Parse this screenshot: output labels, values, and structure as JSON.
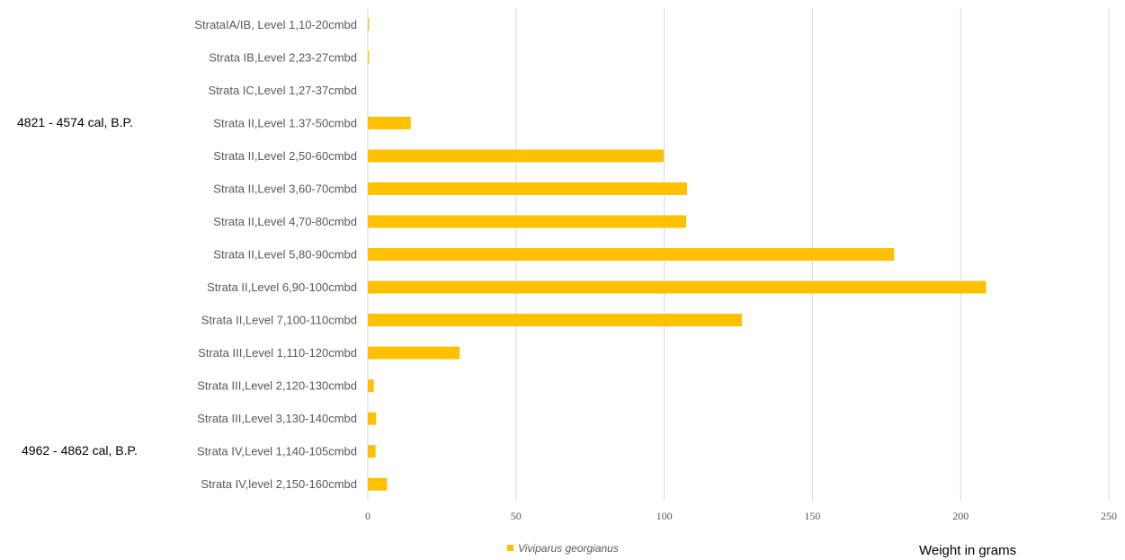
{
  "chart_data": {
    "type": "bar",
    "orientation": "horizontal",
    "title": "",
    "xlabel": "Weight in grams",
    "ylabel": "",
    "xlim": [
      0,
      250
    ],
    "x_ticks": [
      0,
      50,
      100,
      150,
      200,
      250
    ],
    "grid": true,
    "legend_position": "bottom",
    "bar_color": "#FFC000",
    "categories": [
      "StrataIA/IB, Level 1,10-20cmbd",
      "Strata IB,Level 2,23-27cmbd",
      "Strata IC,Level 1,27-37cmbd",
      "Strata II,Level 1.37-50cmbd",
      "Strata II,Level 2,50-60cmbd",
      "Strata II,Level 3,60-70cmbd",
      "Strata II,Level 4,70-80cmbd",
      "Strata II,Level 5,80-90cmbd",
      "Strata II,Level 6,90-100cmbd",
      "Strata II,Level 7,100-110cmbd",
      "Strata III,Level 1,110-120cmbd",
      "Strata III,Level 2,120-130cmbd",
      "Strata III,Level 3,130-140cmbd",
      "Strata IV,Level 1,140-105cmbd",
      "Strata IV,level 2,150-160cmbd"
    ],
    "series": [
      {
        "name": "Viviparus georgianus",
        "values": [
          0.4,
          0.4,
          0,
          14.5,
          99.8,
          107.7,
          107.4,
          177.6,
          208.6,
          126.2,
          31,
          2,
          2.8,
          2.6,
          6.5
        ]
      }
    ],
    "annotations": [
      {
        "text": "4821 - 4574 cal, B.P.",
        "category_index": 3
      },
      {
        "text": "4962 - 4862 cal, B.P.",
        "category_index": 13
      }
    ]
  }
}
